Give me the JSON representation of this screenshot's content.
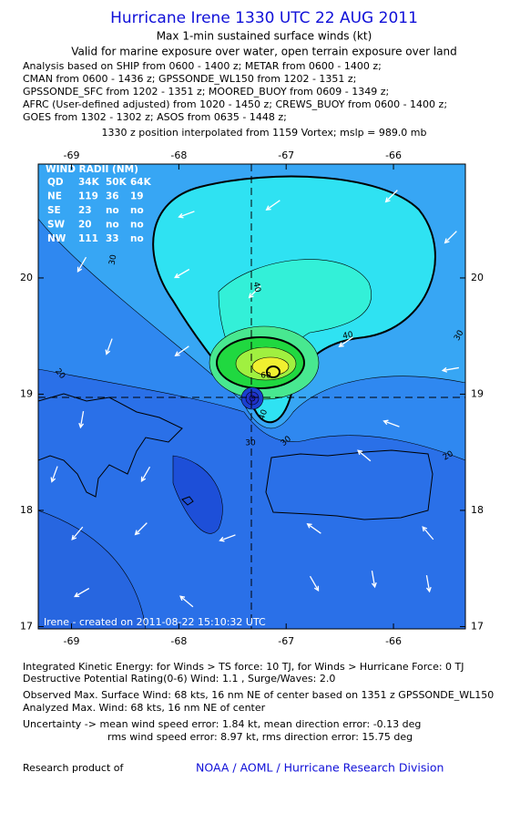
{
  "header": {
    "title": "Hurricane Irene 1330 UTC 22 AUG 2011",
    "subtitle": "Max 1-min sustained surface winds (kt)",
    "validity": "Valid for marine exposure over water, open terrain exposure over land",
    "analysis_lines": [
      "Analysis based on SHIP from 0600 - 1400 z; METAR from 0600 - 1400 z;",
      "CMAN from 0600 - 1436 z; GPSSONDE_WL150 from 1202 - 1351 z;",
      "GPSSONDE_SFC from 1202 - 1351 z; MOORED_BUOY from 0609 - 1349 z;",
      "AFRC (User-defined adjusted) from 1020 - 1450 z; CREWS_BUOY from 0600 - 1400 z;",
      "GOES from 1302 - 1302 z; ASOS from 0635 - 1448 z;"
    ],
    "position_note": "1330 z position interpolated from 1159 Vortex; mslp = 989.0 mb"
  },
  "map": {
    "xlim": [
      -69.31,
      -65.33
    ],
    "ylim": [
      16.98,
      20.98
    ],
    "xticks": [
      -69,
      -68,
      -67,
      -66
    ],
    "yticks": [
      20,
      19,
      18,
      17
    ],
    "wind_radii": {
      "title": "WIND RADII (NM)",
      "rows": [
        [
          "QD",
          "34K",
          "50K",
          "64K"
        ],
        [
          "NE",
          119,
          36,
          19
        ],
        [
          "SE",
          23,
          "no",
          "no"
        ],
        [
          "SW",
          20,
          "no",
          "no"
        ],
        [
          "NW",
          111,
          33,
          "no"
        ]
      ]
    },
    "contour_labels": [
      30,
      40,
      40,
      30,
      20,
      30,
      30,
      20,
      40,
      60
    ],
    "credit": "Irene - created on 2011-08-22 15:10:32 UTC"
  },
  "stats": [
    "Integrated Kinetic Energy:  for Winds > TS force: 10 TJ,  for Winds > Hurricane Force: 0 TJ",
    "Destructive Potential Rating(0-6)   Wind: 1.1 , Surge/Waves: 2.0",
    "Observed Max. Surface Wind: 68 kts, 16 nm NE of center based on 1351 z GPSSONDE_WL150",
    "Analyzed Max. Wind: 68 kts, 16 nm NE of center",
    "Uncertainty -> mean wind speed error: 1.84 kt,   mean direction error:  -0.13 deg",
    "rms wind speed error: 8.97 kt,   rms direction error:  15.75 deg"
  ],
  "footer": {
    "label": "Research product of",
    "org": "NOAA / AOML / Hurricane Research Division"
  }
}
